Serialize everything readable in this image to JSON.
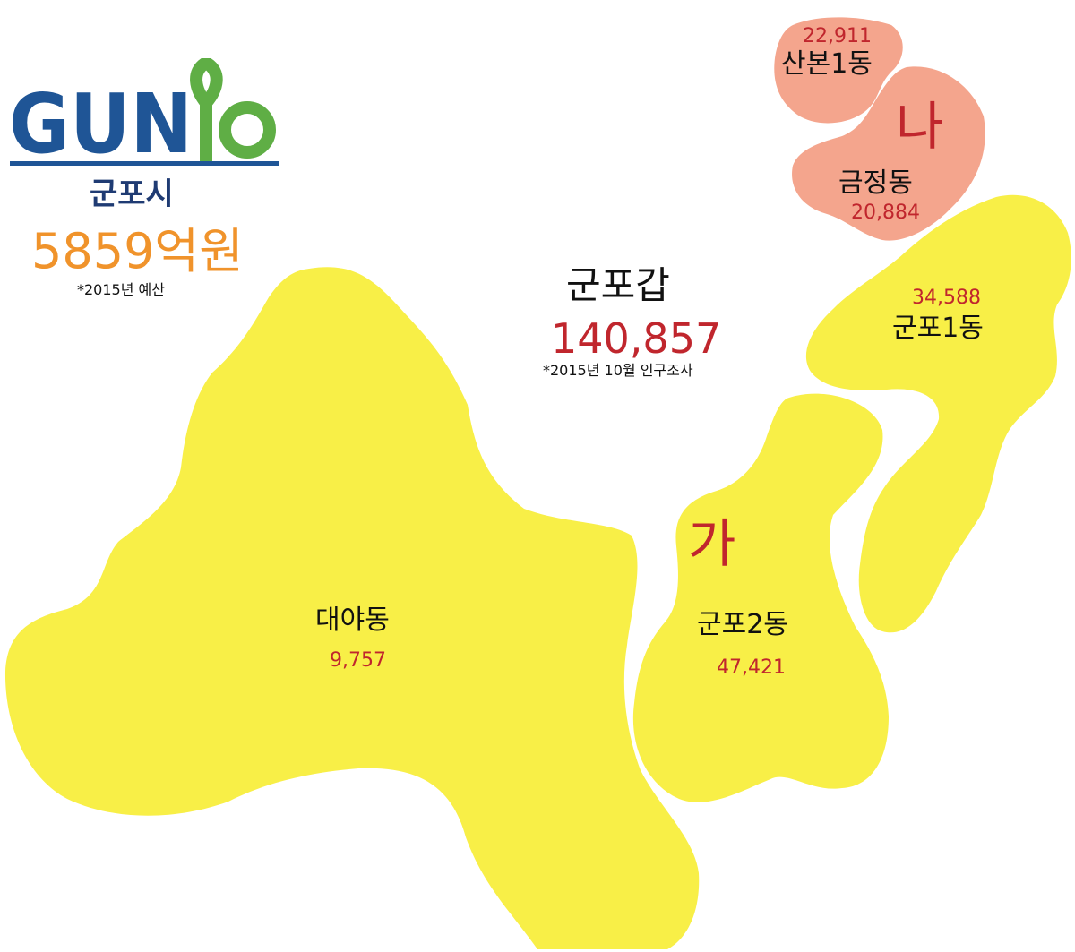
{
  "logo": {
    "text_blue": "GUN",
    "text_green": "PO",
    "colors": {
      "blue": "#1f5596",
      "green": "#5fae45"
    }
  },
  "city": {
    "name": "군포시",
    "budget": "5859억원",
    "budget_note": "*2015년 예산"
  },
  "summary": {
    "name": "군포갑",
    "population": "140,857",
    "note": "*2015년 10월 인구조사"
  },
  "districts": {
    "ga": "가",
    "na": "나"
  },
  "regions": [
    {
      "name": "산본1동",
      "population": "22,911",
      "color": "#f4a58d"
    },
    {
      "name": "금정동",
      "population": "20,884",
      "color": "#f4a58d"
    },
    {
      "name": "군포1동",
      "population": "34,588",
      "color": "#f8ef47"
    },
    {
      "name": "군포2동",
      "population": "47,421",
      "color": "#f8ef47"
    },
    {
      "name": "대야동",
      "population": "9,757",
      "color": "#f8ef47"
    }
  ]
}
